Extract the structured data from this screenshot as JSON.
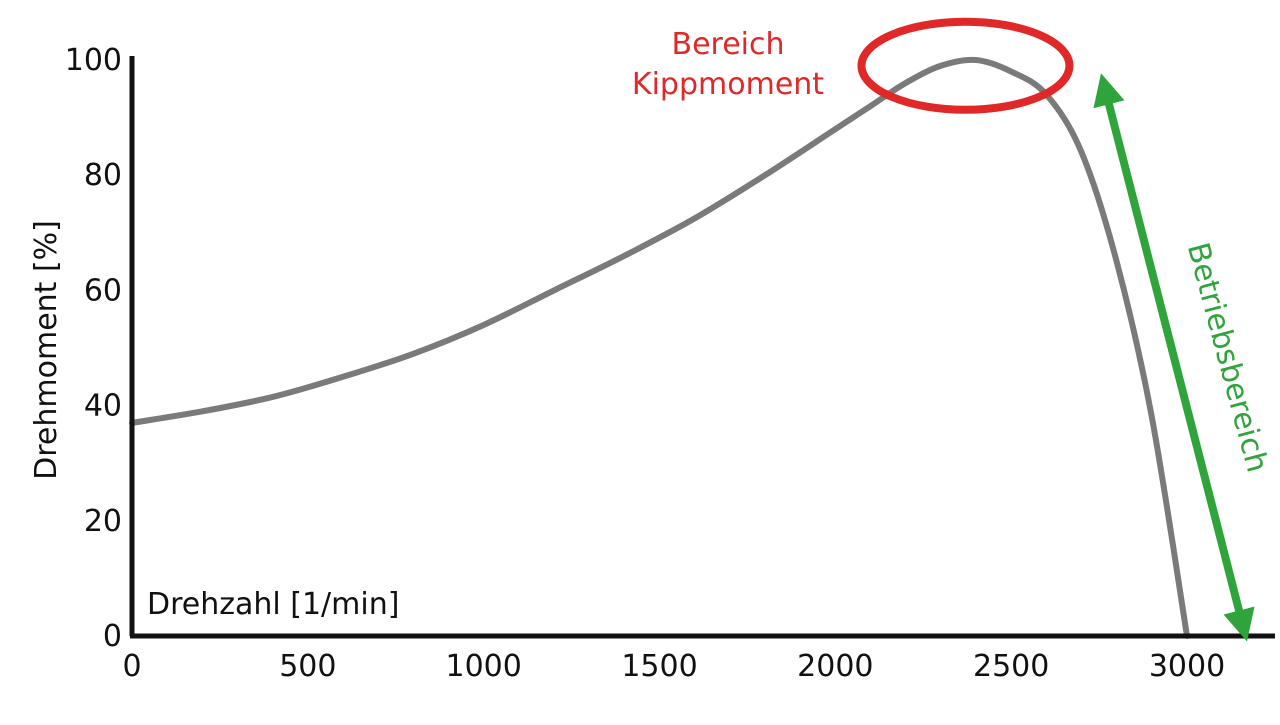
{
  "chart_data": {
    "type": "line",
    "title": "",
    "xlabel": "Drehzahl [1/min]",
    "ylabel": "Drehmoment [%]",
    "xlim": [
      0,
      3000
    ],
    "ylim": [
      0,
      100
    ],
    "xticks": [
      "0",
      "500",
      "1000",
      "1500",
      "2000",
      "2500",
      "3000"
    ],
    "yticks": [
      "0",
      "20",
      "40",
      "60",
      "80",
      "100"
    ],
    "grid": false,
    "series": [
      {
        "points": [
          [
            0,
            37
          ],
          [
            200,
            39
          ],
          [
            400,
            41.5
          ],
          [
            600,
            45
          ],
          [
            800,
            49
          ],
          [
            1000,
            54
          ],
          [
            1200,
            60
          ],
          [
            1400,
            66
          ],
          [
            1600,
            72.5
          ],
          [
            1800,
            80
          ],
          [
            2000,
            88
          ],
          [
            2100,
            92
          ],
          [
            2200,
            96
          ],
          [
            2300,
            99
          ],
          [
            2400,
            100
          ],
          [
            2500,
            98
          ],
          [
            2600,
            94
          ],
          [
            2700,
            84
          ],
          [
            2800,
            65
          ],
          [
            2900,
            38
          ],
          [
            3000,
            0
          ]
        ]
      }
    ],
    "annotations": {
      "kippmoment_label_line1": "Bereich",
      "kippmoment_label_line2": "Kippmoment",
      "betriebsbereich_label": "Betriebsbereich",
      "kippmoment_center": [
        2370,
        99
      ],
      "betriebsbereich_range": [
        0,
        95
      ]
    },
    "colors": {
      "curve": "#7a7a7a",
      "axis": "#111111",
      "highlight": "#e02828",
      "operating_range": "#2fa43a"
    }
  }
}
